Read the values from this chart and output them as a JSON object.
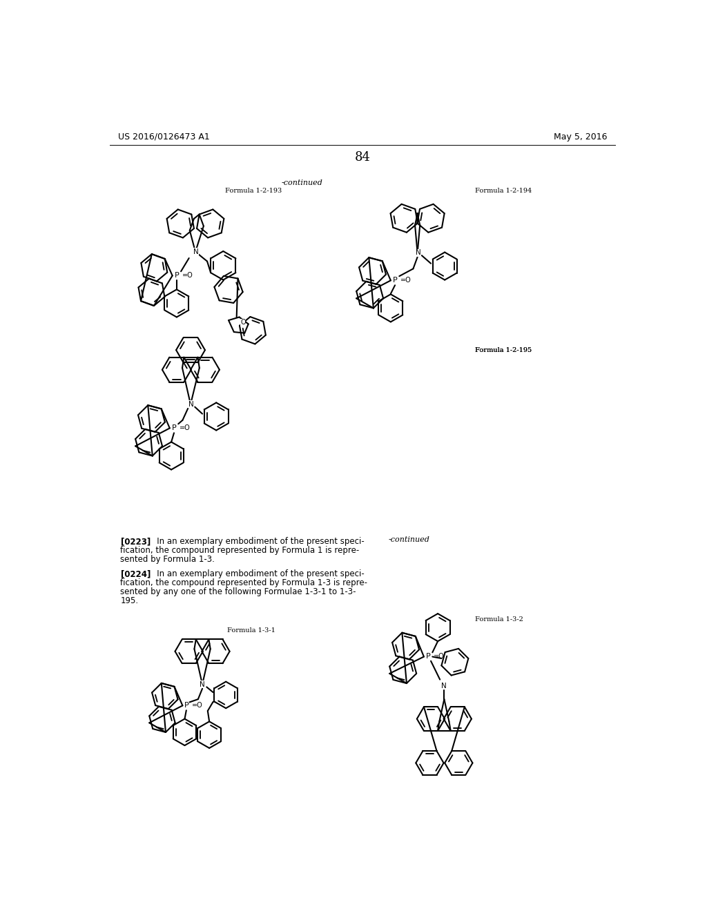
{
  "page_header_left": "US 2016/0126473 A1",
  "page_header_right": "May 5, 2016",
  "page_number": "84",
  "continued_label": "-continued",
  "f193_label": "Formula 1-2-193",
  "f194_label": "Formula 1-2-194",
  "f195_label": "Formula 1-2-195",
  "f131_label": "Formula 1-3-1",
  "f132_label": "Formula 1-3-2",
  "continued_bottom": "-continued",
  "para_0223_bold": "[0223]",
  "para_0223_text": "   In an exemplary embodiment of the present speci-\nfication, the compound represented by Formula 1 is repre-\nsented by Formula 1-3.",
  "para_0224_bold": "[0224]",
  "para_0224_text": "   In an exemplary embodiment of the present speci-\nfication, the compound represented by Formula 1-3 is repre-\nsented by any one of the following Formulae 1-3-1 to 1-3-\n195.",
  "bg": "#ffffff",
  "fg": "#000000"
}
